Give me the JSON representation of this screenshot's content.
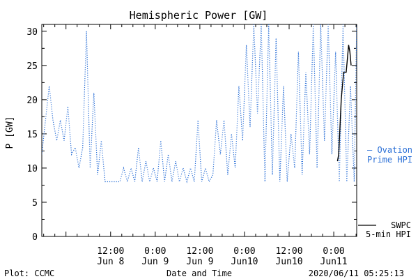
{
  "chart_data": {
    "type": "line",
    "title": "Hemispheric Power [GW]",
    "ylabel": "P [GW]",
    "xlabel": "Date and Time",
    "ylim": [
      0,
      31
    ],
    "yticks": [
      0,
      5,
      10,
      15,
      20,
      25,
      30
    ],
    "xlim": [
      "2020-06-07 17:30",
      "2020-06-11 06:10"
    ],
    "xticks": [
      {
        "at": "2020-06-08 12:00",
        "time": "12:00",
        "date": "Jun 8"
      },
      {
        "at": "2020-06-09 00:00",
        "time": "0:00",
        "date": "Jun 9"
      },
      {
        "at": "2020-06-09 12:00",
        "time": "12:00",
        "date": "Jun 9"
      },
      {
        "at": "2020-06-10 00:00",
        "time": "0:00",
        "date": "Jun10"
      },
      {
        "at": "2020-06-10 12:00",
        "time": "12:00",
        "date": "Jun10"
      },
      {
        "at": "2020-06-11 00:00",
        "time": "0:00",
        "date": "Jun11"
      }
    ],
    "grid": false,
    "series": [
      {
        "name": "Ovation Prime HPI",
        "legend_lines": [
          "— Ovation",
          "Prime HPI"
        ],
        "color": "#2a6fd6",
        "style": "dotted",
        "points": [
          [
            "2020-06-07 17:30",
            12
          ],
          [
            "2020-06-07 18:30",
            17
          ],
          [
            "2020-06-07 19:30",
            22
          ],
          [
            "2020-06-07 20:30",
            17
          ],
          [
            "2020-06-07 21:30",
            14
          ],
          [
            "2020-06-07 22:30",
            17
          ],
          [
            "2020-06-07 23:30",
            14
          ],
          [
            "2020-06-08 00:30",
            19
          ],
          [
            "2020-06-08 01:30",
            12
          ],
          [
            "2020-06-08 02:30",
            13
          ],
          [
            "2020-06-08 03:30",
            10
          ],
          [
            "2020-06-08 04:30",
            13
          ],
          [
            "2020-06-08 05:30",
            30
          ],
          [
            "2020-06-08 06:30",
            10
          ],
          [
            "2020-06-08 07:30",
            21
          ],
          [
            "2020-06-08 08:30",
            9
          ],
          [
            "2020-06-08 09:30",
            14
          ],
          [
            "2020-06-08 10:30",
            8
          ],
          [
            "2020-06-08 11:30",
            8
          ],
          [
            "2020-06-08 12:30",
            8
          ],
          [
            "2020-06-08 13:30",
            8
          ],
          [
            "2020-06-08 14:30",
            8
          ],
          [
            "2020-06-08 15:30",
            10
          ],
          [
            "2020-06-08 16:30",
            8
          ],
          [
            "2020-06-08 17:30",
            10
          ],
          [
            "2020-06-08 18:30",
            8
          ],
          [
            "2020-06-08 19:30",
            13
          ],
          [
            "2020-06-08 20:30",
            8
          ],
          [
            "2020-06-08 21:30",
            11
          ],
          [
            "2020-06-08 22:30",
            8
          ],
          [
            "2020-06-08 23:30",
            10
          ],
          [
            "2020-06-09 00:30",
            8
          ],
          [
            "2020-06-09 01:30",
            14
          ],
          [
            "2020-06-09 02:30",
            8
          ],
          [
            "2020-06-09 03:30",
            12
          ],
          [
            "2020-06-09 04:30",
            8
          ],
          [
            "2020-06-09 05:30",
            11
          ],
          [
            "2020-06-09 06:30",
            8
          ],
          [
            "2020-06-09 07:30",
            10
          ],
          [
            "2020-06-09 08:30",
            8
          ],
          [
            "2020-06-09 09:30",
            10
          ],
          [
            "2020-06-09 10:30",
            8
          ],
          [
            "2020-06-09 11:30",
            17
          ],
          [
            "2020-06-09 12:30",
            8
          ],
          [
            "2020-06-09 13:30",
            10
          ],
          [
            "2020-06-09 14:30",
            8
          ],
          [
            "2020-06-09 15:30",
            9
          ],
          [
            "2020-06-09 16:30",
            17
          ],
          [
            "2020-06-09 17:30",
            12
          ],
          [
            "2020-06-09 18:30",
            17
          ],
          [
            "2020-06-09 19:30",
            9
          ],
          [
            "2020-06-09 20:30",
            15
          ],
          [
            "2020-06-09 21:30",
            10
          ],
          [
            "2020-06-09 22:30",
            22
          ],
          [
            "2020-06-09 23:30",
            14
          ],
          [
            "2020-06-10 00:30",
            28
          ],
          [
            "2020-06-10 01:30",
            16
          ],
          [
            "2020-06-10 02:30",
            31
          ],
          [
            "2020-06-10 03:30",
            18
          ],
          [
            "2020-06-10 04:30",
            31
          ],
          [
            "2020-06-10 05:30",
            8
          ],
          [
            "2020-06-10 06:30",
            31
          ],
          [
            "2020-06-10 07:30",
            9
          ],
          [
            "2020-06-10 08:30",
            29
          ],
          [
            "2020-06-10 09:30",
            8
          ],
          [
            "2020-06-10 10:30",
            22
          ],
          [
            "2020-06-10 11:30",
            8
          ],
          [
            "2020-06-10 12:30",
            15
          ],
          [
            "2020-06-10 13:30",
            10
          ],
          [
            "2020-06-10 14:30",
            27
          ],
          [
            "2020-06-10 15:30",
            9
          ],
          [
            "2020-06-10 16:30",
            24
          ],
          [
            "2020-06-10 17:30",
            12
          ],
          [
            "2020-06-10 18:30",
            31
          ],
          [
            "2020-06-10 19:30",
            10
          ],
          [
            "2020-06-10 20:30",
            31
          ],
          [
            "2020-06-10 21:30",
            14
          ],
          [
            "2020-06-10 22:30",
            31
          ],
          [
            "2020-06-10 23:30",
            12
          ],
          [
            "2020-06-11 00:30",
            27
          ],
          [
            "2020-06-11 01:30",
            8
          ],
          [
            "2020-06-11 02:30",
            31
          ],
          [
            "2020-06-11 03:30",
            8
          ],
          [
            "2020-06-11 04:30",
            22
          ],
          [
            "2020-06-11 05:30",
            8
          ],
          [
            "2020-06-11 06:10",
            31
          ]
        ]
      },
      {
        "name": "SWPC 5-min HPI",
        "legend_lines": [
          "SWPC",
          "5-min HPI"
        ],
        "color": "#000000",
        "style": "solid",
        "points": [
          [
            "2020-06-11 01:00",
            11
          ],
          [
            "2020-06-11 01:20",
            12
          ],
          [
            "2020-06-11 01:40",
            16
          ],
          [
            "2020-06-11 02:00",
            20
          ],
          [
            "2020-06-11 02:20",
            22
          ],
          [
            "2020-06-11 02:40",
            24
          ],
          [
            "2020-06-11 03:20",
            24
          ],
          [
            "2020-06-11 03:40",
            26
          ],
          [
            "2020-06-11 04:00",
            28
          ],
          [
            "2020-06-11 04:20",
            27
          ],
          [
            "2020-06-11 04:40",
            25
          ]
        ]
      }
    ]
  },
  "footer": {
    "left": "Plot: CCMC",
    "center": "Date and Time",
    "right": "2020/06/11 05:25:13"
  },
  "colors": {
    "ovation": "#2a6fd6",
    "swpc": "#000000",
    "axis": "#000000"
  }
}
